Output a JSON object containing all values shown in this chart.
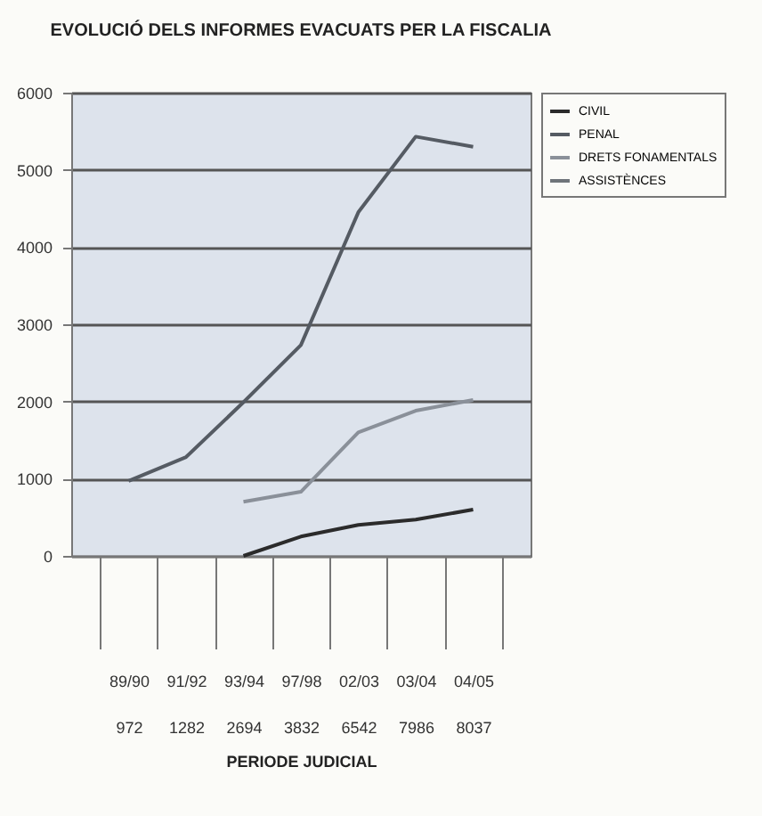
{
  "chart_data": {
    "type": "line",
    "title": "EVOLUCIÓ DELS INFORMES EVACUATS PER LA FISCALIA",
    "xlabel": "PERIODE JUDICIAL",
    "categories": [
      "89/90",
      "91/92",
      "93/94",
      "97/98",
      "02/03",
      "03/04",
      "04/05"
    ],
    "totals": [
      "972",
      "1282",
      "2694",
      "3832",
      "6542",
      "7986",
      "8037"
    ],
    "series": [
      {
        "name": "CIVIL",
        "color": "#2b2b2b",
        "values": [
          null,
          null,
          0,
          250,
          400,
          470,
          600
        ]
      },
      {
        "name": "PENAL",
        "color": "#555b63",
        "values": [
          970,
          1280,
          1990,
          2730,
          4450,
          5430,
          5300
        ]
      },
      {
        "name": "DRETS FONAMENTALS",
        "color": "#8a9099",
        "values": [
          null,
          null,
          700,
          830,
          1600,
          1880,
          2020
        ]
      },
      {
        "name": "ASSISTÈNCES",
        "color": "#6f747a",
        "values": [
          null,
          null,
          null,
          null,
          null,
          null,
          null
        ]
      }
    ],
    "ylim": [
      0,
      6000
    ],
    "yticks": [
      0,
      1000,
      2000,
      3000,
      4000,
      5000,
      6000
    ],
    "grid": "y",
    "legend": "right"
  }
}
